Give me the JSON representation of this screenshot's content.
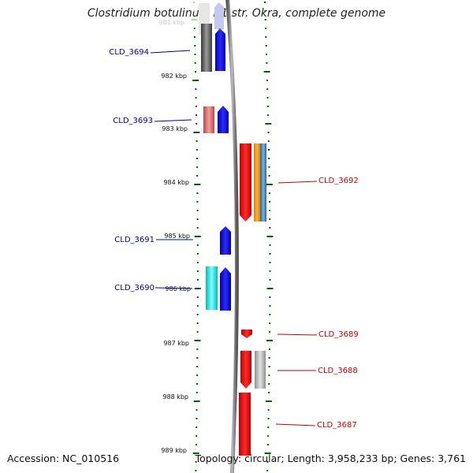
{
  "header": {
    "title": "Clostridium botulinum B1 str. Okra, complete genome"
  },
  "footer": {
    "accession": "Accession: NC_010516",
    "summary": "Topology: circular; Length: 3,958,233 bp; Genes: 3,761"
  },
  "axis": {
    "ticks": [
      "981 kbp",
      "982 kbp",
      "983 kbp",
      "984 kbp",
      "985 kbp",
      "986 kbp",
      "987 kbp",
      "988 kbp",
      "989 kbp"
    ]
  },
  "colors": {
    "forward_label": "#0000aa",
    "reverse_label": "#cc0000",
    "tick": "#006600",
    "backbone": "#8c8c8c"
  },
  "genes": {
    "forward": [
      {
        "id": "CLD_3694",
        "label": "CLD_3694"
      },
      {
        "id": "CLD_3693",
        "label": "CLD_3693"
      },
      {
        "id": "CLD_3691",
        "label": "CLD_3691"
      },
      {
        "id": "CLD_3690",
        "label": "CLD_3690"
      }
    ],
    "reverse": [
      {
        "id": "CLD_3692",
        "label": "CLD_3692"
      },
      {
        "id": "CLD_3689",
        "label": "CLD_3689"
      },
      {
        "id": "CLD_3688",
        "label": "CLD_3688"
      },
      {
        "id": "CLD_3687",
        "label": "CLD_3687"
      }
    ]
  }
}
